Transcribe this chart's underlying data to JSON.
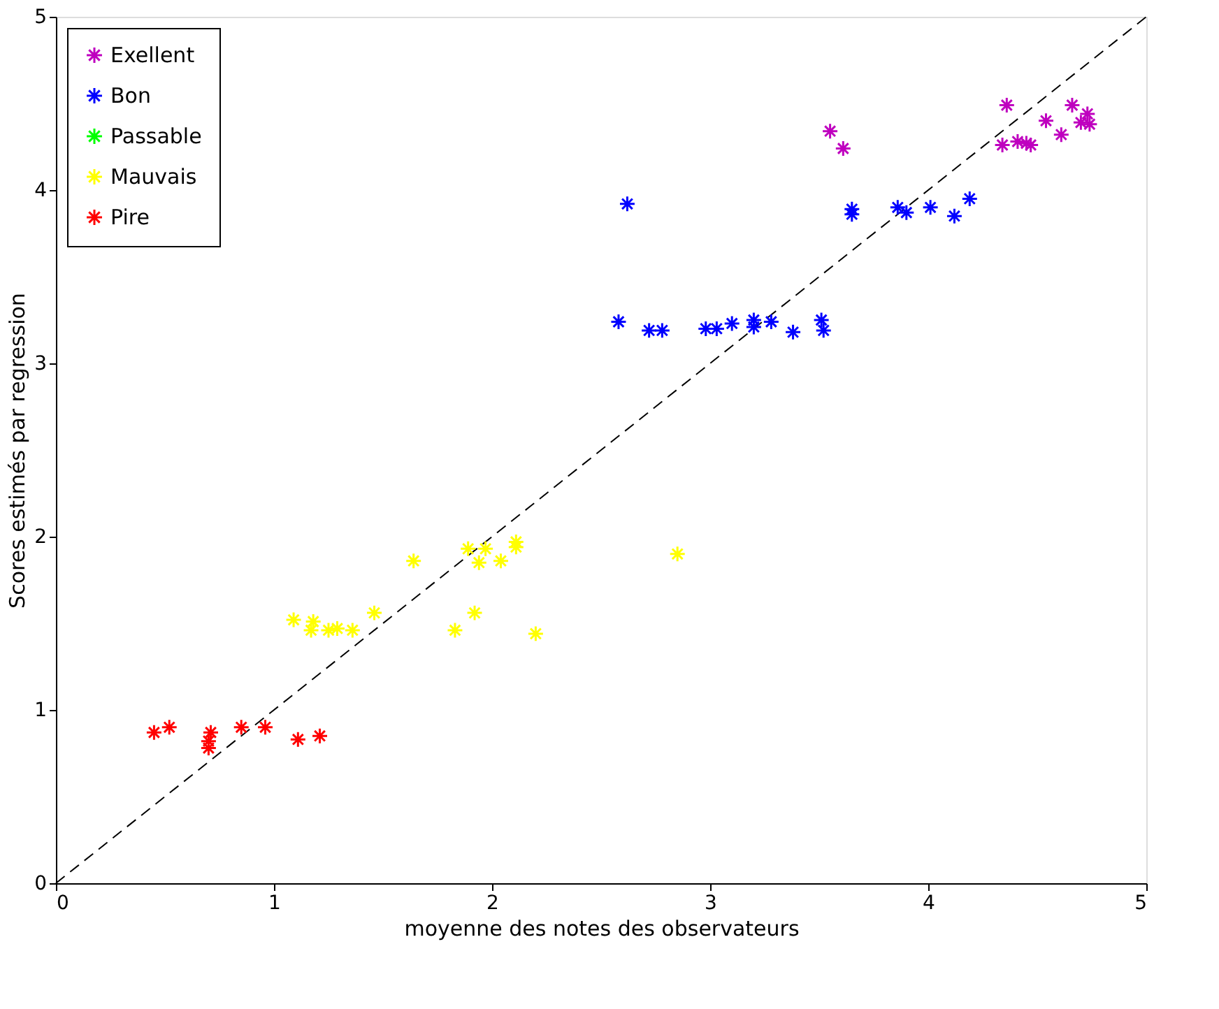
{
  "chart_data": {
    "type": "scatter",
    "xlabel": "moyenne des notes des observateurs",
    "ylabel": "Scores estimés par regression",
    "xlim": [
      0,
      5
    ],
    "ylim": [
      0,
      5
    ],
    "xticks": [
      0,
      1,
      2,
      3,
      4,
      5
    ],
    "yticks": [
      0,
      1,
      2,
      3,
      4,
      5
    ],
    "grid": false,
    "legend": "top left",
    "marker": "cross",
    "series": [
      {
        "name": "Exellent",
        "color": "#bf00bf",
        "x": [
          3.55,
          3.61,
          4.36,
          4.34,
          4.41,
          4.45,
          4.47,
          4.54,
          4.61,
          4.66,
          4.7,
          4.73,
          4.74
        ],
        "values": [
          4.34,
          4.24,
          4.49,
          4.26,
          4.28,
          4.27,
          4.26,
          4.4,
          4.32,
          4.49,
          4.39,
          4.44,
          4.38
        ]
      },
      {
        "name": "Bon",
        "color": "#0000ff",
        "x": [
          2.58,
          2.62,
          2.72,
          2.78,
          2.98,
          3.03,
          3.1,
          3.2,
          3.2,
          3.28,
          3.38,
          3.51,
          3.52,
          3.65,
          3.65,
          3.86,
          3.9,
          4.01,
          4.12,
          4.19
        ],
        "values": [
          3.24,
          3.92,
          3.19,
          3.19,
          3.2,
          3.2,
          3.23,
          3.25,
          3.21,
          3.24,
          3.18,
          3.25,
          3.19,
          3.89,
          3.86,
          3.9,
          3.87,
          3.9,
          3.85,
          3.95
        ]
      },
      {
        "name": "Passable",
        "color": "#00ff00"
      },
      {
        "name": "Mauvais",
        "color": "#ffff00",
        "x": [
          1.09,
          1.18,
          1.17,
          1.25,
          1.29,
          1.36,
          1.46,
          1.64,
          1.83,
          1.92,
          1.89,
          1.97,
          1.94,
          2.04,
          2.11,
          2.11,
          2.2,
          2.85
        ],
        "values": [
          1.52,
          1.51,
          1.46,
          1.46,
          1.47,
          1.46,
          1.56,
          1.86,
          1.46,
          1.56,
          1.93,
          1.93,
          1.85,
          1.86,
          1.97,
          1.94,
          1.44,
          1.9
        ]
      },
      {
        "name": "Pire",
        "color": "#ff0000",
        "x": [
          0.45,
          0.52,
          0.71,
          0.7,
          0.7,
          0.85,
          0.96,
          1.11,
          1.21
        ],
        "values": [
          0.87,
          0.9,
          0.87,
          0.82,
          0.78,
          0.9,
          0.9,
          0.83,
          0.85
        ]
      },
      {
        "type": "line",
        "color": "#000000",
        "line_style": "dashed",
        "marker": "none",
        "x": [
          0,
          5
        ],
        "values": [
          0,
          5
        ]
      }
    ]
  }
}
